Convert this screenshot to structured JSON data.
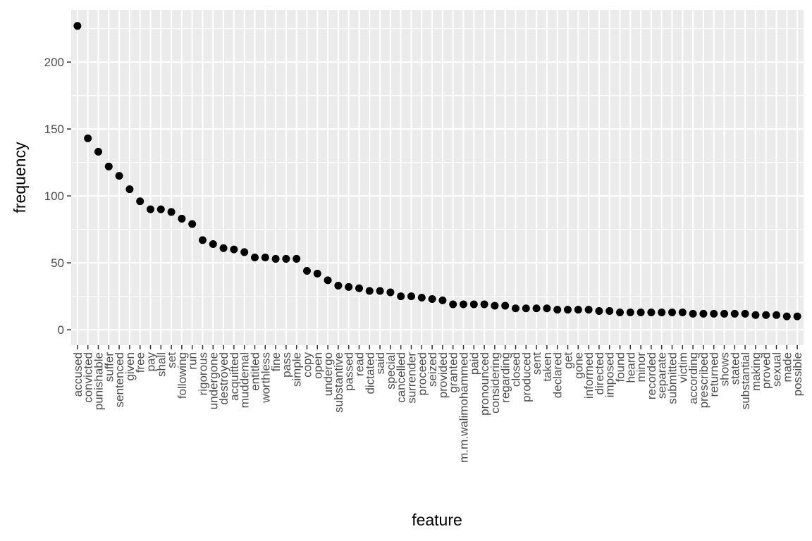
{
  "chart_data": {
    "type": "scatter",
    "title": "",
    "xlabel": "feature",
    "ylabel": "frequency",
    "ylim": [
      -11.5,
      239
    ],
    "yticks": [
      0,
      50,
      100,
      150,
      200
    ],
    "grid": true,
    "legend": "none",
    "colors": {
      "panel": "#EBEBEB",
      "grid": "#FFFFFF",
      "point": "#000000",
      "tick": "#4D4D4D"
    },
    "categories": [
      "accused",
      "convicted",
      "punishable",
      "suffer",
      "sentenced",
      "given",
      "free",
      "pay",
      "shall",
      "set",
      "following",
      "run",
      "rigorous",
      "undergone",
      "destroyed",
      "acquitted",
      "muddemal",
      "entitled",
      "worthless",
      "fine",
      "pass",
      "simple",
      "copy",
      "open",
      "undergo",
      "substantive",
      "passed",
      "read",
      "dictated",
      "said",
      "special",
      "cancelled",
      "surrender",
      "proceed",
      "seized",
      "provided",
      "granted",
      "m.m.walimohammed",
      "paid",
      "pronounced",
      "considering",
      "regarding",
      "closed",
      "produced",
      "sent",
      "taken",
      "declared",
      "get",
      "gone",
      "informed",
      "directed",
      "imposed",
      "found",
      "heard",
      "minor",
      "recorded",
      "separate",
      "submitted",
      "victim",
      "according",
      "prescribed",
      "returned",
      "shows",
      "stated",
      "substantial",
      "making",
      "proved",
      "sexual",
      "made",
      "possible"
    ],
    "values": [
      227,
      143,
      133,
      122,
      115,
      105,
      96,
      90,
      90,
      88,
      83,
      79,
      67,
      64,
      61,
      60,
      58,
      54,
      54,
      53,
      53,
      53,
      44,
      42,
      37,
      33,
      32,
      31,
      29,
      29,
      28,
      25,
      25,
      24,
      23,
      22,
      19,
      19,
      19,
      19,
      18,
      18,
      16,
      16,
      16,
      16,
      15,
      15,
      15,
      15,
      14,
      14,
      13,
      13,
      13,
      13,
      13,
      13,
      13,
      12,
      12,
      12,
      12,
      12,
      12,
      11,
      11,
      11,
      10,
      10
    ]
  }
}
